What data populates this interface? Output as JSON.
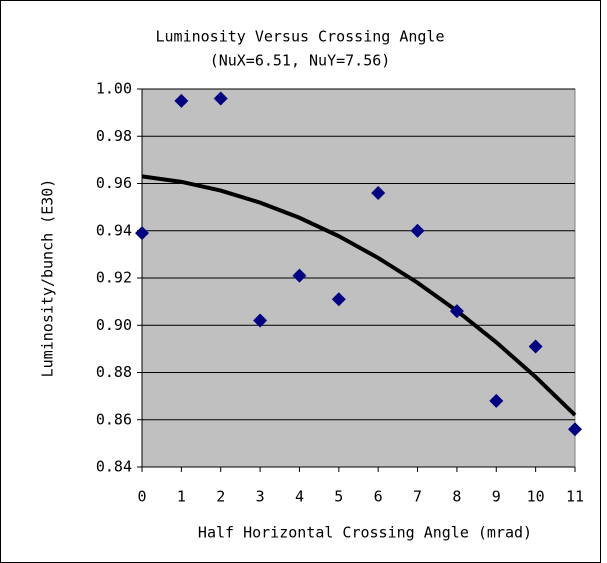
{
  "chart_data": {
    "type": "scatter",
    "title": "Luminosity Versus Crossing Angle",
    "subtitle": "(NuX=6.51, NuY=7.56)",
    "x_label": "Half Horizontal Crossing Angle (mrad)",
    "y_label": "Luminosity/bunch (E30)",
    "series": [
      {
        "color": "#000080",
        "x": [
          0,
          1,
          2,
          3,
          4,
          5,
          6,
          7,
          8,
          9,
          10,
          11
        ],
        "values": [
          0.939,
          0.995,
          0.996,
          0.902,
          0.921,
          0.911,
          0.956,
          0.94,
          0.906,
          0.868,
          0.891,
          0.856
        ]
      }
    ],
    "trend": {
      "color": "#000000",
      "x": [
        0,
        1,
        2,
        3,
        4,
        5,
        6,
        7,
        8,
        9,
        10,
        11
      ],
      "values": [
        0.963,
        0.9607,
        0.957,
        0.9519,
        0.9455,
        0.9377,
        0.9285,
        0.918,
        0.9061,
        0.8928,
        0.8781,
        0.862
      ]
    },
    "xlim": [
      0,
      11
    ],
    "xticks": [
      0,
      1,
      2,
      3,
      4,
      5,
      6,
      7,
      8,
      9,
      10,
      11
    ],
    "ylim": [
      0.84,
      1.0
    ],
    "yticks": [
      0.84,
      0.86,
      0.88,
      {
        "value": 0.9,
        "label": "0.90"
      },
      0.92,
      0.94,
      0.96,
      0.98,
      {
        "value": 1.0,
        "label": "1.00"
      }
    ],
    "grid": true,
    "plot_background": "#c0c0c0"
  }
}
